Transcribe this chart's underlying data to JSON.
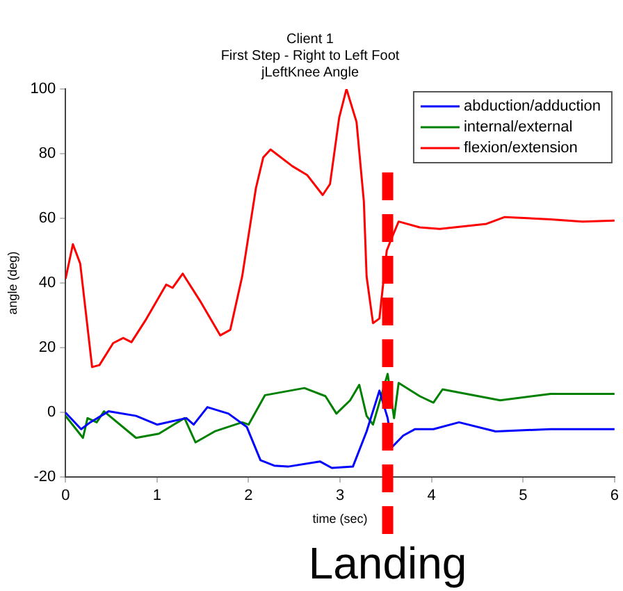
{
  "chart_data": {
    "type": "line",
    "title": [
      "Client 1",
      "First Step - Right to Left Foot",
      "jLeftKnee Angle"
    ],
    "xlabel": "time (sec)",
    "ylabel": "angle (deg)",
    "xlim": [
      0,
      6
    ],
    "xticks": [
      0,
      1,
      2,
      3,
      4,
      5,
      6
    ],
    "ylim": [
      -20,
      100
    ],
    "yticks": [
      -20,
      0,
      20,
      40,
      60,
      80,
      100
    ],
    "grid": false,
    "legend": "top right",
    "marker": "none",
    "line_style": "solid",
    "series": [
      {
        "name": "abduction/adduction",
        "color": "#0000ff",
        "x": [
          0,
          0.17,
          0.27,
          0.47,
          0.77,
          1.0,
          1.32,
          1.4,
          1.55,
          1.78,
          1.98,
          2.13,
          2.28,
          2.43,
          2.78,
          2.91,
          3.14,
          3.29,
          3.43,
          3.52,
          3.57,
          3.69,
          3.82,
          4.02,
          4.3,
          4.7,
          5.3,
          6
        ],
        "values": [
          -0.1,
          -5.2,
          -3.1,
          0.3,
          -1.1,
          -3.8,
          -1.8,
          -3.8,
          1.6,
          -0.4,
          -4.5,
          -14.8,
          -16.5,
          -16.8,
          -15.2,
          -17.2,
          -16.8,
          -5.9,
          6.7,
          -1.8,
          -10.7,
          -7.2,
          -5.2,
          -5.2,
          -3.1,
          -5.9,
          -5.2,
          -5.2
        ]
      },
      {
        "name": "internal/external",
        "color": "#008000",
        "x": [
          0,
          0.19,
          0.24,
          0.34,
          0.42,
          0.77,
          1.02,
          1.3,
          1.42,
          1.63,
          1.93,
          2.0,
          2.18,
          2.61,
          2.84,
          2.96,
          3.11,
          3.21,
          3.29,
          3.36,
          3.52,
          3.59,
          3.64,
          3.87,
          4.02,
          4.12,
          4.75,
          5.3,
          6
        ],
        "values": [
          -1.1,
          -7.9,
          -1.8,
          -3.1,
          0.3,
          -7.9,
          -6.6,
          -1.8,
          -9.3,
          -5.9,
          -3.1,
          -3.8,
          5.3,
          7.5,
          5.0,
          -0.4,
          3.7,
          8.5,
          -1.1,
          -3.8,
          11.9,
          -1.8,
          9.1,
          5.0,
          3.0,
          7.1,
          3.7,
          5.7,
          5.7
        ]
      },
      {
        "name": "flexion/extension",
        "color": "#ff0000",
        "x": [
          0,
          0.08,
          0.16,
          0.29,
          0.37,
          0.52,
          0.63,
          0.72,
          0.87,
          1.1,
          1.17,
          1.28,
          1.48,
          1.69,
          1.8,
          1.93,
          2.08,
          2.16,
          2.24,
          2.48,
          2.64,
          2.81,
          2.89,
          2.99,
          3.07,
          3.18,
          3.26,
          3.29,
          3.36,
          3.43,
          3.51,
          3.56,
          3.64,
          3.87,
          4.09,
          4.6,
          4.8,
          5.3,
          5.65,
          6
        ],
        "values": [
          41.3,
          52,
          46,
          14,
          14.6,
          21.4,
          23,
          21.7,
          28.3,
          39.5,
          38.5,
          42.9,
          34,
          23.8,
          25.5,
          42,
          69.3,
          78.8,
          81.3,
          76.1,
          73.4,
          67.2,
          70.6,
          91.1,
          100,
          89.8,
          65.2,
          42,
          27.6,
          29,
          50,
          53.6,
          59,
          57.2,
          56.7,
          58.3,
          60.4,
          59.7,
          59,
          59.3
        ]
      }
    ],
    "ref_lines": [
      {
        "axis": "x",
        "value": 3.52,
        "label": "Landing",
        "color": "#ff0000",
        "line_style": "dashed"
      }
    ]
  }
}
